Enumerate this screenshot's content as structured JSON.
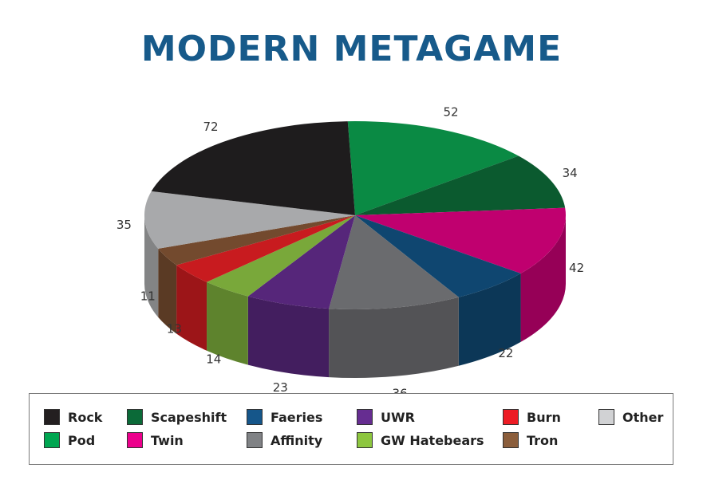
{
  "chart_data": {
    "type": "pie",
    "title": "MODERN METAGAME",
    "three_d": true,
    "legend_placement": "bottom",
    "slices": [
      {
        "name": "Pod",
        "value": 52,
        "color": "#0a8a44"
      },
      {
        "name": "Scapeshift",
        "value": 34,
        "color": "#0b5a2f"
      },
      {
        "name": "Twin",
        "value": 42,
        "color": "#c0006f"
      },
      {
        "name": "Faeries",
        "value": 22,
        "color": "#0f4670"
      },
      {
        "name": "Affinity",
        "value": 36,
        "color": "#6a6b6e"
      },
      {
        "name": "UWR",
        "value": 23,
        "color": "#56267a"
      },
      {
        "name": "GW Hatebears",
        "value": 14,
        "color": "#79a83a"
      },
      {
        "name": "Burn",
        "value": 13,
        "color": "#c81b1f"
      },
      {
        "name": "Tron",
        "value": 11,
        "color": "#734a2e"
      },
      {
        "name": "Other",
        "value": 35,
        "color": "#a8a9ab"
      },
      {
        "name": "Rock",
        "value": 72,
        "color": "#1e1c1d"
      }
    ]
  },
  "legend": [
    {
      "name": "Rock",
      "color": "#231f20"
    },
    {
      "name": "Scapeshift",
      "color": "#0b6a38"
    },
    {
      "name": "Faeries",
      "color": "#15568a"
    },
    {
      "name": "UWR",
      "color": "#662d91"
    },
    {
      "name": "Burn",
      "color": "#ed1c24"
    },
    {
      "name": "Other",
      "color": "#d1d2d4"
    },
    {
      "name": "Pod",
      "color": "#00a651"
    },
    {
      "name": "Twin",
      "color": "#ec008c"
    },
    {
      "name": "Affinity",
      "color": "#808285"
    },
    {
      "name": "GW Hatebears",
      "color": "#8dc63f"
    },
    {
      "name": "Tron",
      "color": "#8b5e3c"
    }
  ]
}
